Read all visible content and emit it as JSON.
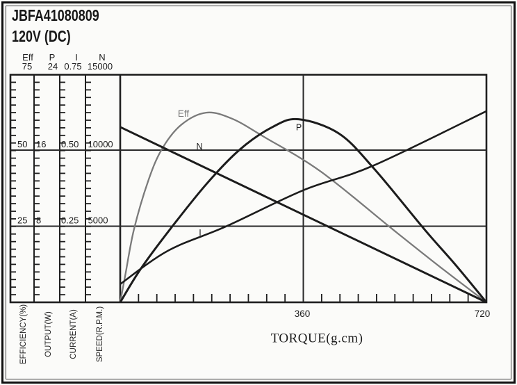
{
  "window": {
    "title": "JBFA41080809",
    "subtitle": "120V (DC)"
  },
  "scales": {
    "columns": [
      {
        "name": "Eff",
        "top": "75",
        "mid": "50",
        "low": "25",
        "axis_label": "EFFICIENCY(%)"
      },
      {
        "name": "P",
        "top": "24",
        "mid": "16",
        "low": "8",
        "axis_label": "OUTPUT(W)"
      },
      {
        "name": "I",
        "top": "0.75",
        "mid": "0.50",
        "low": "0.25",
        "axis_label": "CURRENT(A)"
      },
      {
        "name": "N",
        "top": "15000",
        "mid": "10000",
        "low": "5000",
        "axis_label": "SPEED(R.P.M.)"
      }
    ],
    "x_axis": {
      "label": "TORQUE(g.cm)",
      "tick_360": "360",
      "tick_720": "720"
    }
  },
  "chart_data": {
    "type": "line",
    "title": "JBFA41080809 120V (DC) DC-motor performance curves vs torque",
    "xlabel": "TORQUE(g.cm)",
    "x_range": [
      0,
      720
    ],
    "x_major_gridline": 360,
    "x_minor_tick_step": 36,
    "grid": "horizontal major gridlines at 1/3 and 2/3 of each y scale; vertical gridline at torque 360",
    "legend_position": "labels on curves",
    "series": [
      {
        "name": "N",
        "label": "N",
        "ylabel": "SPEED(R.P.M.)",
        "axis_max": 15000,
        "axis_ticks": [
          5000,
          10000,
          15000
        ],
        "color": "#1c1c1c",
        "points": [
          [
            0,
            11550
          ],
          [
            720,
            0
          ]
        ]
      },
      {
        "name": "I",
        "label": "I",
        "ylabel": "CURRENT(A)",
        "axis_max": 0.75,
        "axis_ticks": [
          0.25,
          0.5,
          0.75
        ],
        "color": "#1c1c1c",
        "points": [
          [
            0,
            0.06
          ],
          [
            94,
            0.17
          ],
          [
            208,
            0.25
          ],
          [
            361,
            0.37
          ],
          [
            497,
            0.45
          ],
          [
            720,
            0.63
          ]
        ]
      },
      {
        "name": "P",
        "label": "P",
        "ylabel": "OUTPUT(W)",
        "axis_max": 24,
        "axis_ticks": [
          8,
          16,
          24
        ],
        "color": "#1c1c1c",
        "points": [
          [
            0,
            0
          ],
          [
            40,
            3.5
          ],
          [
            98,
            7.7
          ],
          [
            170,
            12.5
          ],
          [
            235,
            16.1
          ],
          [
            300,
            18.5
          ],
          [
            351,
            19.3
          ],
          [
            430,
            17.8
          ],
          [
            499,
            14.1
          ],
          [
            598,
            7.7
          ],
          [
            660,
            3.9
          ],
          [
            720,
            0
          ]
        ]
      },
      {
        "name": "Eff",
        "label": "Eff",
        "ylabel": "EFFICIENCY(%)",
        "axis_max": 75,
        "axis_ticks": [
          25,
          50,
          75
        ],
        "color": "#7a7a7a",
        "points": [
          [
            0,
            0
          ],
          [
            10,
            9
          ],
          [
            27,
            24
          ],
          [
            55,
            40
          ],
          [
            82,
            50.5
          ],
          [
            120,
            58.5
          ],
          [
            169,
            62.5
          ],
          [
            220,
            60.5
          ],
          [
            283,
            54.5
          ],
          [
            395,
            43
          ],
          [
            536,
            24
          ],
          [
            630,
            11.5
          ],
          [
            720,
            0
          ]
        ]
      }
    ]
  }
}
